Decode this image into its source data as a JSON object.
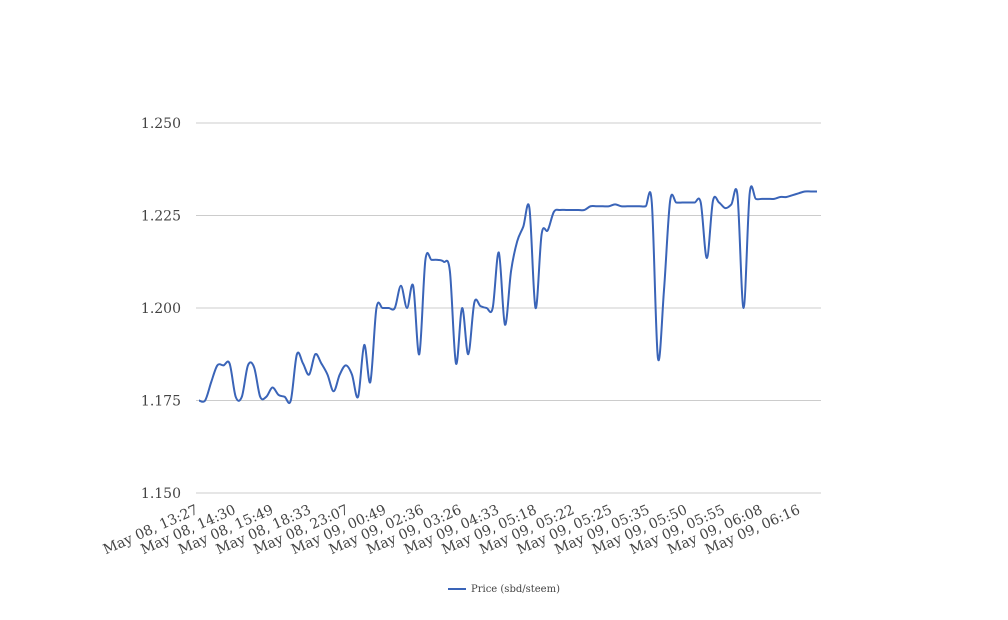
{
  "chart_data": {
    "type": "line",
    "title": "",
    "xlabel": "",
    "ylabel": "",
    "ylim": [
      1.15,
      1.25
    ],
    "yticks": [
      "1.150",
      "1.175",
      "1.200",
      "1.225",
      "1.250"
    ],
    "xticks": [
      "May 08, 13:27",
      "May 08, 14:30",
      "May 08, 15:49",
      "May 08, 18:33",
      "May 08, 23:07",
      "May 09, 00:49",
      "May 09, 02:36",
      "May 09, 03:26",
      "May 09, 04:33",
      "May 09, 05:18",
      "May 09, 05:22",
      "May 09, 05:25",
      "May 09, 05:35",
      "May 09, 05:50",
      "May 09, 05:55",
      "May 09, 06:08",
      "May 09, 06:16"
    ],
    "grid": true,
    "legend_position": "bottom",
    "series": [
      {
        "name": "Price (sbd/steem)",
        "color": "#3a64b8",
        "values": [
          1.175,
          1.175,
          1.18,
          1.1845,
          1.1845,
          1.185,
          1.176,
          1.176,
          1.1845,
          1.184,
          1.176,
          1.176,
          1.1785,
          1.1765,
          1.176,
          1.175,
          1.1875,
          1.185,
          1.182,
          1.1875,
          1.185,
          1.182,
          1.1775,
          1.182,
          1.1845,
          1.182,
          1.176,
          1.19,
          1.18,
          1.2,
          1.2,
          1.2,
          1.2,
          1.206,
          1.2,
          1.206,
          1.1875,
          1.213,
          1.213,
          1.213,
          1.2125,
          1.21,
          1.185,
          1.2,
          1.1875,
          1.2015,
          1.2005,
          1.2,
          1.2,
          1.215,
          1.1955,
          1.21,
          1.218,
          1.222,
          1.227,
          1.2,
          1.22,
          1.221,
          1.226,
          1.2265,
          1.2265,
          1.2265,
          1.2265,
          1.2265,
          1.2275,
          1.2275,
          1.2275,
          1.2275,
          1.228,
          1.2275,
          1.2275,
          1.2275,
          1.2275,
          1.2275,
          1.2285,
          1.1865,
          1.205,
          1.229,
          1.2285,
          1.2285,
          1.2285,
          1.2285,
          1.2285,
          1.2135,
          1.229,
          1.2285,
          1.227,
          1.228,
          1.2305,
          1.2,
          1.231,
          1.2295,
          1.2295,
          1.2295,
          1.2295,
          1.23,
          1.23,
          1.2305,
          1.231,
          1.2315,
          1.2315,
          1.2315
        ]
      }
    ]
  }
}
